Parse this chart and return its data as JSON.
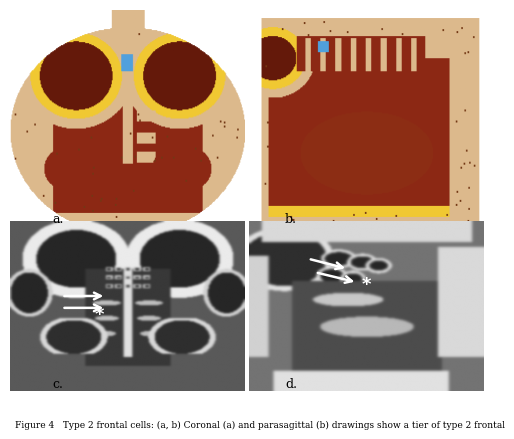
{
  "figure_title": "Figure 4   Type 2 frontal cells: (a, b) Coronal (a) and parasagittal (b) drawings show a tier of type 2 frontal",
  "panel_labels": [
    "a.",
    "b.",
    "c.",
    "d."
  ],
  "bg_color": "#ffffff",
  "caption_fontsize": 6.5,
  "label_fontsize": 9,
  "top_bg": "#ffffff",
  "bone_color": [
    220,
    185,
    140
  ],
  "sinus_color": [
    140,
    40,
    20
  ],
  "yellow_color": [
    240,
    200,
    50
  ],
  "blue_color": [
    80,
    160,
    220
  ],
  "dark_red": [
    100,
    25,
    10
  ]
}
